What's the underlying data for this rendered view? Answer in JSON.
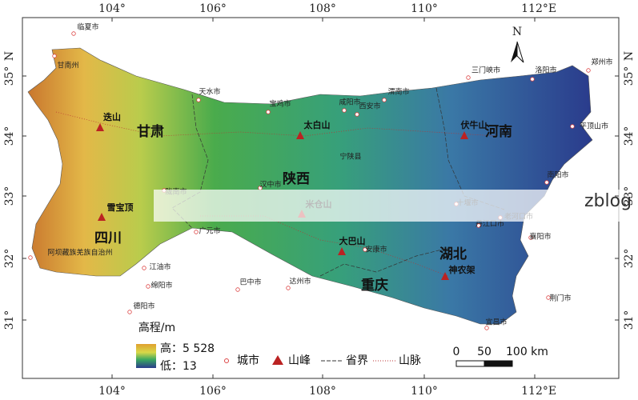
{
  "north_arrow": "N",
  "lon_labels": [
    "104°",
    "106°",
    "108°",
    "110°",
    "112°"
  ],
  "east_label": "E",
  "lat_labels": [
    "35°",
    "34°",
    "33°",
    "32°",
    "31°"
  ],
  "north_label": "N",
  "cities": [
    "临夏市",
    "甘南州",
    "天水市",
    "宝鸡市",
    "咸阳市",
    "西安市",
    "渭南市",
    "三门峡市",
    "洛阳市",
    "郑州市",
    "平顶山市",
    "南阳市",
    "汉中市",
    "陇南市",
    "广元市",
    "十堰市",
    "老河口市",
    "丹江口市",
    "襄阳市",
    "安康市",
    "阿坝藏族羌族自治州",
    "江油市",
    "绵阳市",
    "德阳市",
    "巴中市",
    "达州市",
    "荆门市",
    "宜昌市",
    "宁陕县"
  ],
  "peaks": [
    "迭山",
    "太白山",
    "伏牛山",
    "雪宝顶",
    "米仓山",
    "大巴山",
    "神农架"
  ],
  "provinces": [
    "甘肃",
    "陕西",
    "河南",
    "四川",
    "重庆",
    "湖北"
  ],
  "legend": {
    "title": "高程/m",
    "high": "高：5 528",
    "low": "低：13",
    "city": "城市",
    "peak": "山峰",
    "border": "省界",
    "mountain": "山脉"
  },
  "scale": [
    "0",
    "50",
    "100 km"
  ],
  "watermark": "zblog"
}
